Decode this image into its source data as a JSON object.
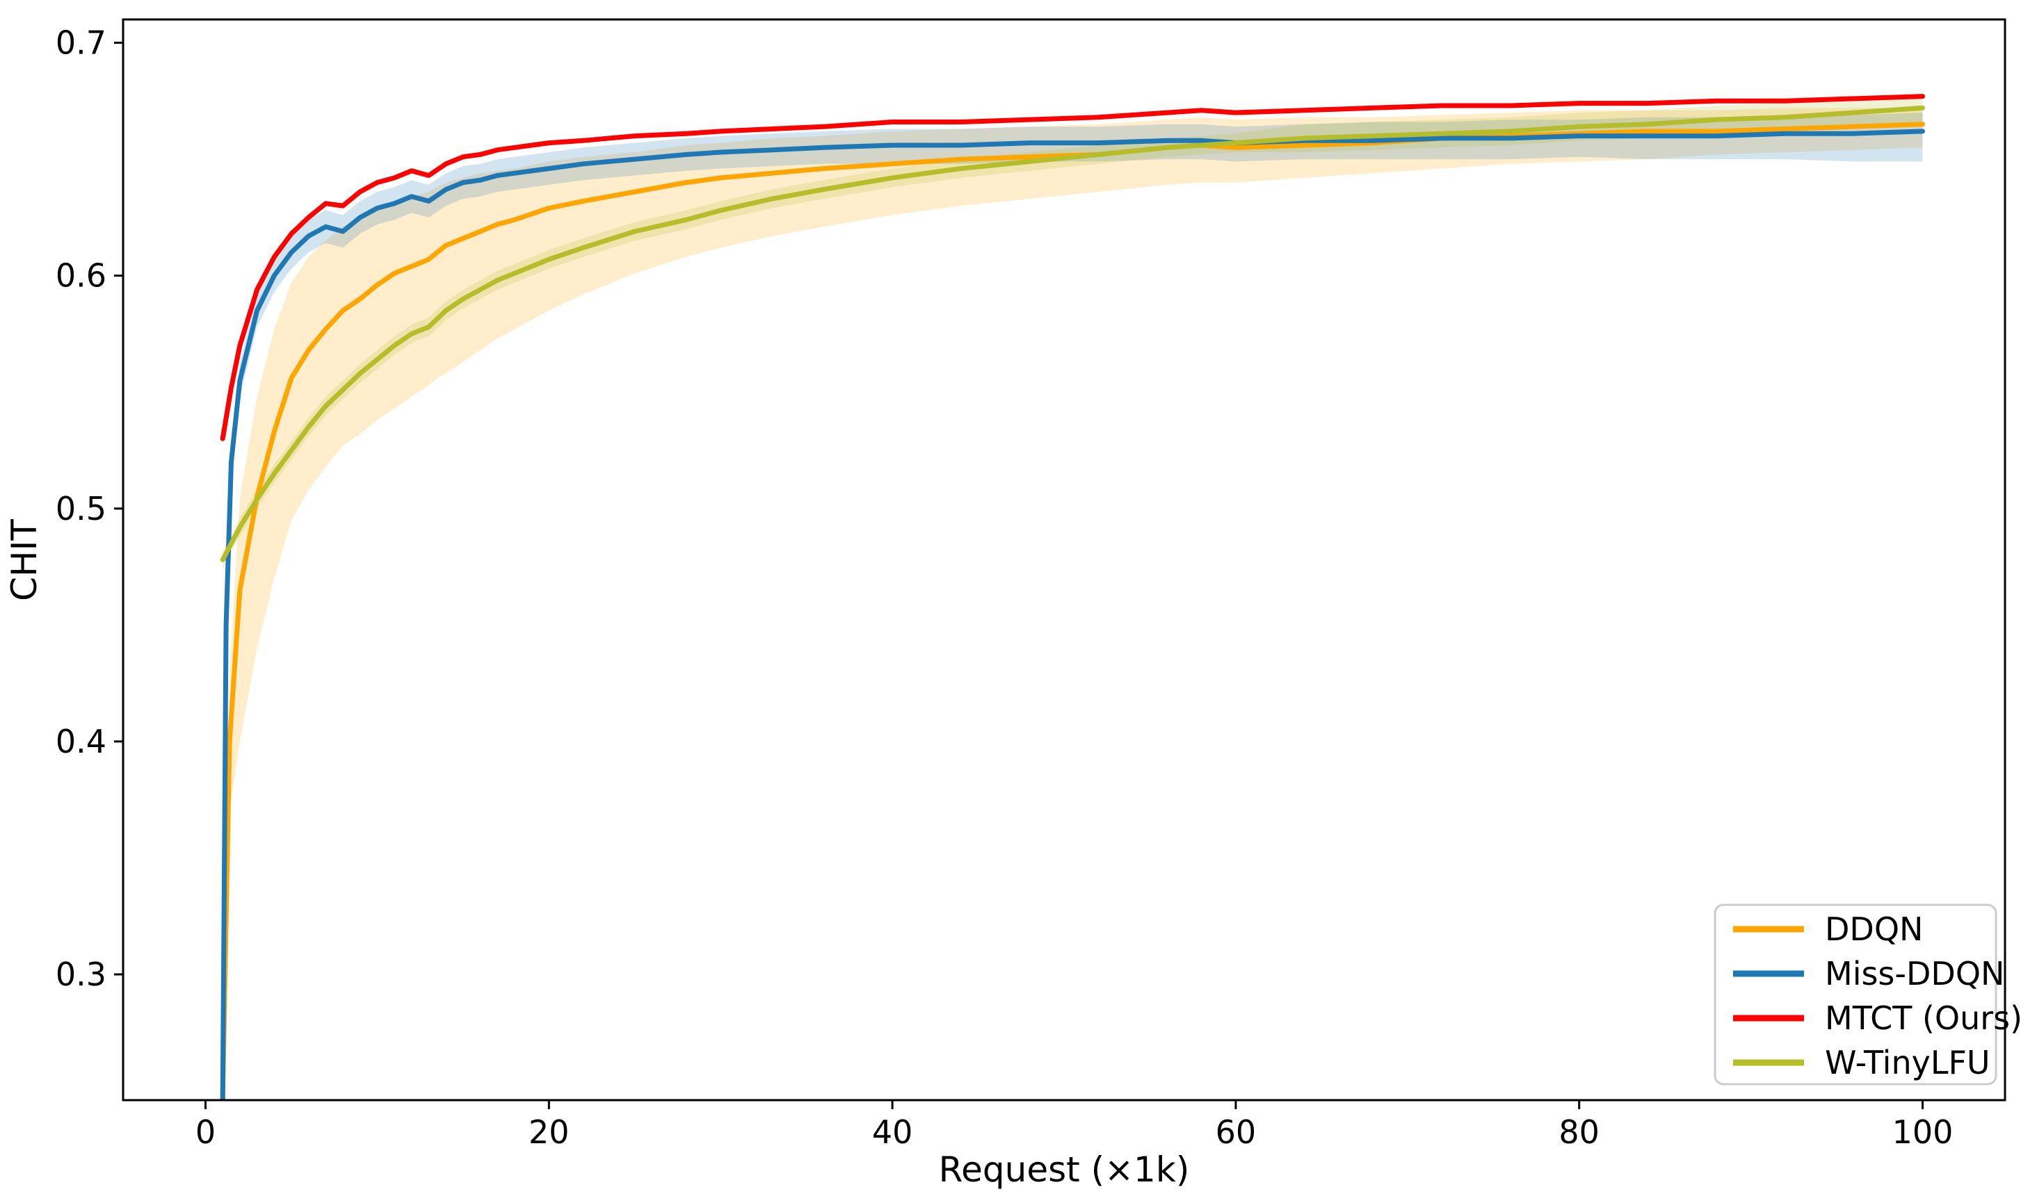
{
  "chart_data": {
    "type": "line",
    "title": "",
    "xlabel": "Request (×1k)",
    "ylabel": "CHIT",
    "xlim": [
      -4.8,
      104.8
    ],
    "ylim": [
      0.246,
      0.71
    ],
    "xticks": [
      0,
      20,
      40,
      60,
      80,
      100
    ],
    "xtick_labels": [
      "0",
      "20",
      "40",
      "60",
      "80",
      "100"
    ],
    "yticks": [
      0.3,
      0.4,
      0.5,
      0.6,
      0.7
    ],
    "ytick_labels": [
      "0.3",
      "0.4",
      "0.5",
      "0.6",
      "0.7"
    ],
    "grid": false,
    "legend_position": "lower right",
    "band_alpha": 0.2,
    "series": [
      {
        "name": "DDQN",
        "color": "#FFA500",
        "x": [
          1,
          1.4,
          2,
          3,
          4,
          5,
          6,
          7,
          8,
          9,
          10,
          11,
          12,
          13,
          13.5,
          14,
          15,
          16,
          17,
          18,
          20,
          22,
          25,
          28,
          30,
          33,
          36,
          40,
          44,
          48,
          52,
          56,
          58,
          60,
          64,
          68,
          72,
          76,
          80,
          84,
          88,
          92,
          96,
          100
        ],
        "y": [
          0.246,
          0.4,
          0.465,
          0.505,
          0.533,
          0.556,
          0.568,
          0.577,
          0.585,
          0.59,
          0.596,
          0.601,
          0.604,
          0.607,
          0.61,
          0.613,
          0.616,
          0.619,
          0.622,
          0.624,
          0.629,
          0.632,
          0.636,
          0.64,
          0.642,
          0.644,
          0.646,
          0.648,
          0.65,
          0.651,
          0.652,
          0.655,
          0.656,
          0.655,
          0.656,
          0.657,
          0.659,
          0.66,
          0.661,
          0.662,
          0.662,
          0.663,
          0.664,
          0.665
        ],
        "band_upper": [
          0.246,
          0.43,
          0.505,
          0.548,
          0.577,
          0.597,
          0.608,
          0.615,
          0.621,
          0.625,
          0.629,
          0.632,
          0.634,
          0.636,
          0.638,
          0.64,
          0.642,
          0.644,
          0.645,
          0.646,
          0.649,
          0.651,
          0.653,
          0.656,
          0.657,
          0.659,
          0.66,
          0.662,
          0.663,
          0.664,
          0.665,
          0.667,
          0.668,
          0.667,
          0.668,
          0.668,
          0.669,
          0.67,
          0.671,
          0.671,
          0.671,
          0.672,
          0.672,
          0.672
        ],
        "band_lower": [
          0.246,
          0.37,
          0.4,
          0.44,
          0.47,
          0.495,
          0.508,
          0.518,
          0.527,
          0.532,
          0.538,
          0.543,
          0.548,
          0.553,
          0.556,
          0.558,
          0.563,
          0.568,
          0.573,
          0.577,
          0.585,
          0.592,
          0.601,
          0.608,
          0.612,
          0.617,
          0.621,
          0.626,
          0.63,
          0.633,
          0.636,
          0.639,
          0.64,
          0.64,
          0.642,
          0.644,
          0.646,
          0.648,
          0.649,
          0.65,
          0.652,
          0.653,
          0.654,
          0.655
        ]
      },
      {
        "name": "Miss-DDQN",
        "color": "#1F77B4",
        "x": [
          1,
          1.2,
          1.5,
          2,
          3,
          4,
          5,
          6,
          7,
          8,
          9,
          10,
          11,
          12,
          13,
          14,
          15,
          16,
          17,
          18,
          20,
          22,
          25,
          28,
          30,
          33,
          36,
          40,
          44,
          48,
          52,
          56,
          58,
          60,
          64,
          68,
          72,
          76,
          80,
          84,
          88,
          92,
          96,
          100
        ],
        "y": [
          0.246,
          0.45,
          0.52,
          0.555,
          0.585,
          0.6,
          0.61,
          0.617,
          0.621,
          0.619,
          0.625,
          0.629,
          0.631,
          0.634,
          0.632,
          0.637,
          0.64,
          0.641,
          0.643,
          0.644,
          0.646,
          0.648,
          0.65,
          0.652,
          0.653,
          0.654,
          0.655,
          0.656,
          0.656,
          0.657,
          0.657,
          0.658,
          0.658,
          0.657,
          0.658,
          0.658,
          0.659,
          0.659,
          0.66,
          0.66,
          0.66,
          0.661,
          0.661,
          0.662
        ],
        "band_upper": [
          0.246,
          0.458,
          0.528,
          0.562,
          0.592,
          0.607,
          0.617,
          0.624,
          0.628,
          0.626,
          0.632,
          0.636,
          0.638,
          0.641,
          0.639,
          0.644,
          0.647,
          0.648,
          0.65,
          0.651,
          0.653,
          0.655,
          0.657,
          0.659,
          0.66,
          0.661,
          0.662,
          0.663,
          0.663,
          0.664,
          0.664,
          0.665,
          0.665,
          0.664,
          0.665,
          0.666,
          0.666,
          0.667,
          0.667,
          0.668,
          0.668,
          0.669,
          0.669,
          0.67
        ],
        "band_lower": [
          0.246,
          0.442,
          0.512,
          0.548,
          0.578,
          0.593,
          0.603,
          0.61,
          0.614,
          0.612,
          0.618,
          0.622,
          0.624,
          0.627,
          0.625,
          0.63,
          0.633,
          0.634,
          0.636,
          0.637,
          0.639,
          0.641,
          0.643,
          0.645,
          0.646,
          0.647,
          0.648,
          0.648,
          0.648,
          0.649,
          0.649,
          0.65,
          0.65,
          0.649,
          0.65,
          0.65,
          0.65,
          0.65,
          0.651,
          0.65,
          0.65,
          0.65,
          0.649,
          0.649
        ]
      },
      {
        "name": "MTCT (Ours)",
        "color": "#FF0000",
        "x": [
          1,
          1.5,
          2,
          3,
          4,
          5,
          6,
          7,
          8,
          9,
          10,
          11,
          12,
          13,
          14,
          15,
          16,
          17,
          18,
          20,
          22,
          25,
          28,
          30,
          33,
          36,
          40,
          44,
          48,
          52,
          56,
          58,
          60,
          64,
          68,
          72,
          76,
          80,
          84,
          88,
          92,
          96,
          100
        ],
        "y": [
          0.53,
          0.552,
          0.57,
          0.594,
          0.608,
          0.618,
          0.625,
          0.631,
          0.63,
          0.636,
          0.64,
          0.642,
          0.645,
          0.643,
          0.648,
          0.651,
          0.652,
          0.654,
          0.655,
          0.657,
          0.658,
          0.66,
          0.661,
          0.662,
          0.663,
          0.664,
          0.666,
          0.666,
          0.667,
          0.668,
          0.67,
          0.671,
          0.67,
          0.671,
          0.672,
          0.673,
          0.673,
          0.674,
          0.674,
          0.675,
          0.675,
          0.676,
          0.677
        ],
        "band_upper": null,
        "band_lower": null
      },
      {
        "name": "W-TinyLFU",
        "color": "#B5BD2B",
        "x": [
          1,
          1.5,
          2,
          3,
          4,
          5,
          6,
          7,
          8,
          9,
          10,
          11,
          12,
          13,
          14,
          15,
          16,
          17,
          18,
          20,
          22,
          25,
          28,
          30,
          33,
          36,
          40,
          44,
          48,
          52,
          56,
          58,
          60,
          64,
          68,
          72,
          76,
          80,
          84,
          88,
          92,
          96,
          100
        ],
        "y": [
          0.478,
          0.485,
          0.492,
          0.504,
          0.515,
          0.525,
          0.535,
          0.544,
          0.551,
          0.558,
          0.564,
          0.57,
          0.575,
          0.578,
          0.585,
          0.59,
          0.594,
          0.598,
          0.601,
          0.607,
          0.612,
          0.619,
          0.624,
          0.628,
          0.633,
          0.637,
          0.642,
          0.646,
          0.649,
          0.652,
          0.655,
          0.656,
          0.657,
          0.659,
          0.66,
          0.661,
          0.662,
          0.664,
          0.665,
          0.667,
          0.668,
          0.67,
          0.672
        ],
        "band_upper": [
          0.482,
          0.489,
          0.496,
          0.508,
          0.519,
          0.529,
          0.539,
          0.548,
          0.555,
          0.562,
          0.568,
          0.574,
          0.579,
          0.582,
          0.589,
          0.594,
          0.598,
          0.602,
          0.605,
          0.611,
          0.616,
          0.623,
          0.628,
          0.632,
          0.637,
          0.641,
          0.646,
          0.65,
          0.653,
          0.656,
          0.659,
          0.66,
          0.661,
          0.665,
          0.666,
          0.667,
          0.668,
          0.67,
          0.671,
          0.673,
          0.674,
          0.676,
          0.678
        ],
        "band_lower": [
          0.474,
          0.481,
          0.488,
          0.5,
          0.511,
          0.521,
          0.531,
          0.54,
          0.547,
          0.554,
          0.56,
          0.566,
          0.571,
          0.574,
          0.581,
          0.586,
          0.59,
          0.594,
          0.597,
          0.603,
          0.608,
          0.615,
          0.62,
          0.624,
          0.629,
          0.633,
          0.638,
          0.642,
          0.645,
          0.648,
          0.651,
          0.652,
          0.653,
          0.653,
          0.654,
          0.655,
          0.656,
          0.658,
          0.659,
          0.661,
          0.662,
          0.664,
          0.666
        ]
      }
    ],
    "legend_labels": [
      "DDQN",
      "Miss-DDQN",
      "MTCT (Ours)",
      "W-TinyLFU"
    ]
  }
}
